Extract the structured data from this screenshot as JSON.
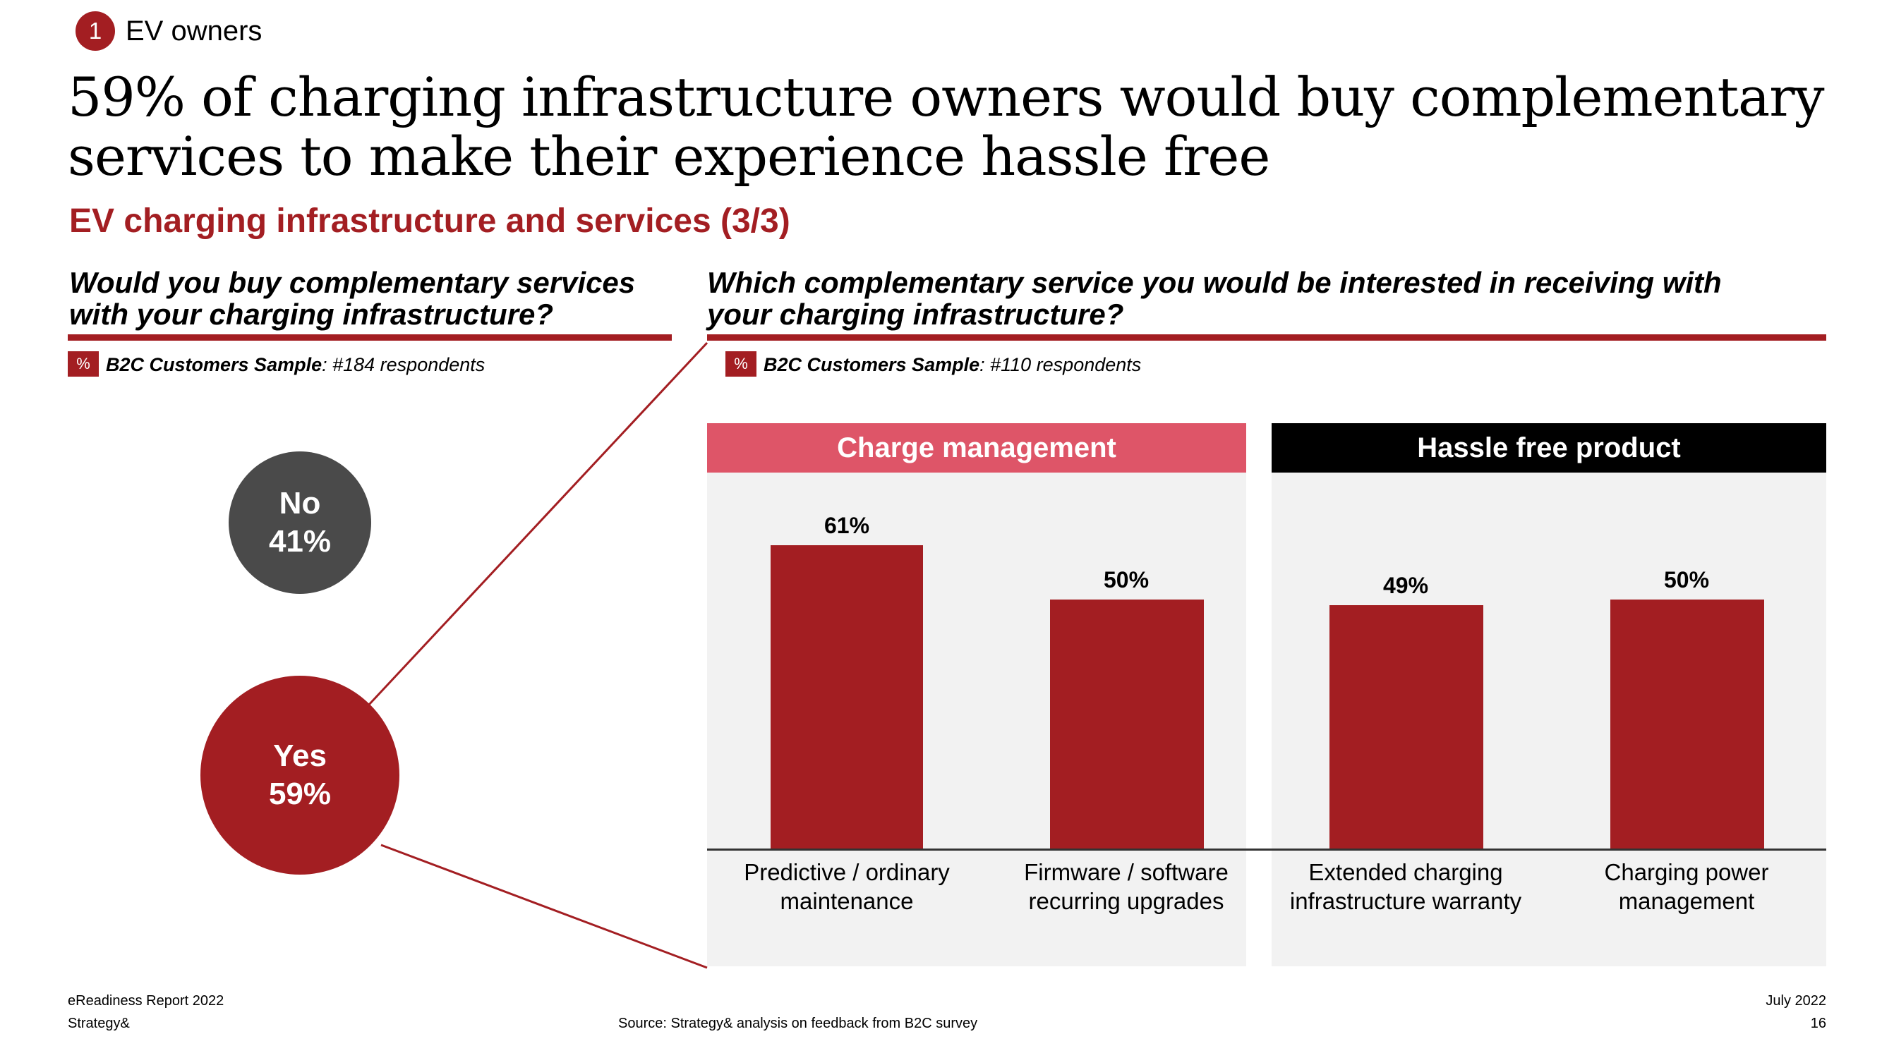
{
  "header": {
    "section_number": "1",
    "section_label": "EV owners",
    "title_line1": "59% of charging infrastructure owners would buy complementary",
    "title_line2": "services to make their experience hassle free",
    "subtitle": "EV charging infrastructure and services (3/3)"
  },
  "left": {
    "question_line1": "Would you buy complementary services",
    "question_line2": "with your charging infrastructure?",
    "pct_symbol": "%",
    "sample_bold": "B2C Customers Sample",
    "sample_rest": ": #184 respondents",
    "no_label": "No",
    "no_value": "41%",
    "yes_label": "Yes",
    "yes_value": "59%"
  },
  "right": {
    "question_line1": "Which complementary service you would be interested in receiving with",
    "question_line2": "your charging infrastructure?",
    "pct_symbol": "%",
    "sample_bold": "B2C Customers Sample",
    "sample_rest": ": #110 respondents"
  },
  "chart_data": [
    {
      "type": "pie",
      "title": "Would you buy complementary services with your charging infrastructure?",
      "categories": [
        "No",
        "Yes"
      ],
      "values": [
        41,
        59
      ],
      "colors": [
        "#4a4a4a",
        "#a31e22"
      ]
    },
    {
      "type": "bar",
      "title": "Which complementary service you would be interested in receiving with your charging infrastructure?",
      "groups": [
        {
          "name": "Charge management",
          "color": "#de5568"
        },
        {
          "name": "Hassle free product",
          "color": "#000000"
        }
      ],
      "categories": [
        {
          "line1": "Predictive / ordinary",
          "line2": "maintenance",
          "group": 0
        },
        {
          "line1": "Firmware / software",
          "line2": "recurring upgrades",
          "group": 0
        },
        {
          "line1": "Extended charging",
          "line2": "infrastructure warranty",
          "group": 1
        },
        {
          "line1": "Charging power",
          "line2": "management",
          "group": 1
        }
      ],
      "values": [
        61,
        50,
        49,
        50
      ],
      "value_labels": [
        "61%",
        "50%",
        "49%",
        "50%"
      ],
      "ylim": [
        0,
        100
      ],
      "bar_color": "#a31e22"
    }
  ],
  "footer": {
    "report": "eReadiness Report 2022",
    "company": "Strategy&",
    "source": "Source: Strategy& analysis on feedback from B2C survey",
    "date": "July 2022",
    "page": "16"
  }
}
